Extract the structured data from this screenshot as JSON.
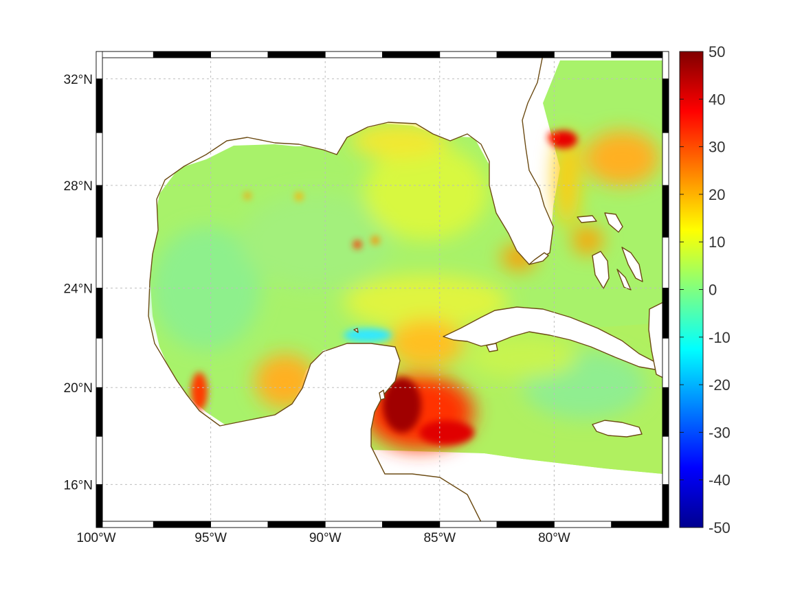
{
  "map": {
    "projection": "mercator",
    "lon_range": [
      -100,
      -75
    ],
    "lat_range": [
      14.2,
      33
    ],
    "grid": true,
    "frame_style": "black-white-alternating",
    "coastline_color": "#6b4a12",
    "land_color": "#ffffff",
    "lon_ticks": [
      {
        "value": -100,
        "label": "100°W"
      },
      {
        "value": -95,
        "label": "95°W"
      },
      {
        "value": -90,
        "label": "90°W"
      },
      {
        "value": -85,
        "label": "85°W"
      },
      {
        "value": -80,
        "label": "80°W"
      }
    ],
    "lat_ticks": [
      {
        "value": 32,
        "label": "32°N"
      },
      {
        "value": 28,
        "label": "28°N"
      },
      {
        "value": 24,
        "label": "24°N"
      },
      {
        "value": 20,
        "label": "20°N"
      },
      {
        "value": 16,
        "label": "16°N"
      }
    ]
  },
  "field": {
    "colormap": "jet",
    "background_value": 7,
    "features": [
      {
        "region": "western-gulf",
        "lon": -94,
        "lat": 24.5,
        "value": 3
      },
      {
        "region": "central-gulf",
        "lon": -89,
        "lat": 26,
        "value": 5
      },
      {
        "region": "eastern-gulf",
        "lon": -85,
        "lat": 27.5,
        "value": 9
      },
      {
        "region": "yucatan-north",
        "lon": -87.8,
        "lat": 22.2,
        "value": -8
      },
      {
        "region": "campeche-bay",
        "lon": -92,
        "lat": 20.2,
        "value": 22
      },
      {
        "region": "veracruz",
        "lon": -95.8,
        "lat": 19.6,
        "value": 30
      },
      {
        "region": "caribbean-northwest",
        "lon": -86.3,
        "lat": 18.4,
        "value": 45
      },
      {
        "region": "caribbean-honduras",
        "lon": -85,
        "lat": 17.6,
        "value": 38
      },
      {
        "region": "florida-southwest",
        "lon": -81.8,
        "lat": 25.2,
        "value": 24
      },
      {
        "region": "atlantic-northeast",
        "lon": -79.8,
        "lat": 29.8,
        "value": 38
      },
      {
        "region": "atlantic-east",
        "lon": -76.6,
        "lat": 29.2,
        "value": 18
      },
      {
        "region": "bahamas",
        "lon": -79,
        "lat": 25.8,
        "value": 20
      },
      {
        "region": "caribbean-east",
        "lon": -78,
        "lat": 19.5,
        "value": 3
      }
    ]
  },
  "colorbar": {
    "min": -50,
    "max": 50,
    "ticks": [
      {
        "value": 50,
        "label": "50"
      },
      {
        "value": 40,
        "label": "40"
      },
      {
        "value": 30,
        "label": "30"
      },
      {
        "value": 20,
        "label": "20"
      },
      {
        "value": 10,
        "label": "10"
      },
      {
        "value": 0,
        "label": "0"
      },
      {
        "value": -10,
        "label": "-10"
      },
      {
        "value": -20,
        "label": "-20"
      },
      {
        "value": -30,
        "label": "-30"
      },
      {
        "value": -40,
        "label": "-40"
      },
      {
        "value": -50,
        "label": "-50"
      }
    ]
  }
}
